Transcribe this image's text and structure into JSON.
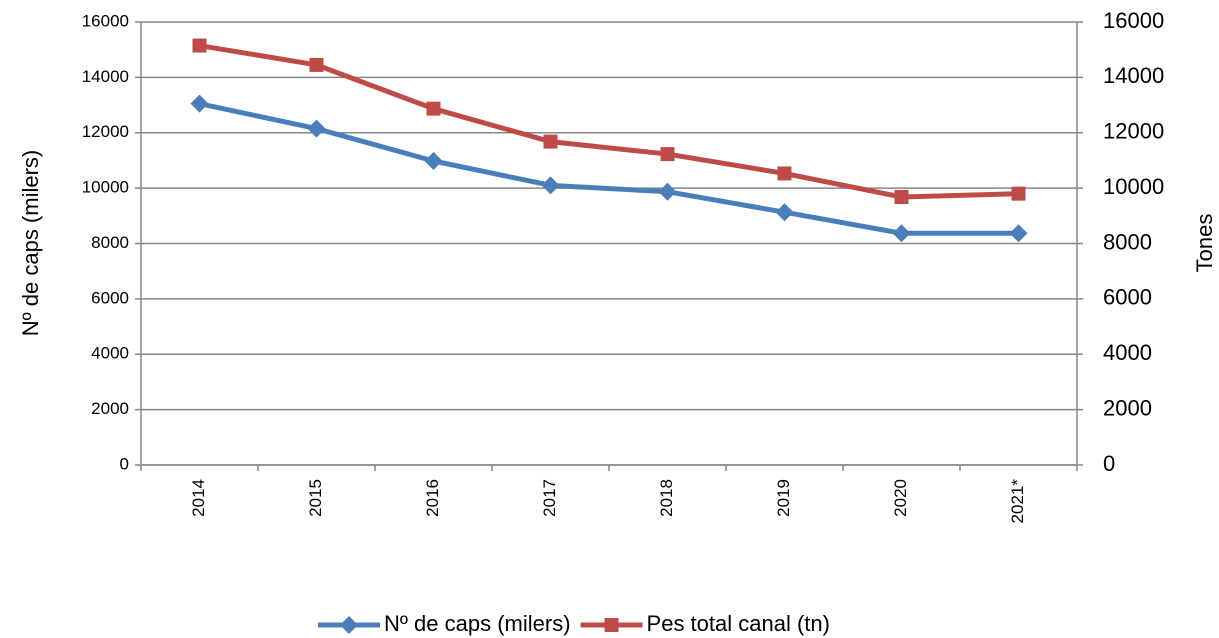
{
  "chart_data": {
    "type": "line",
    "categories": [
      "2014",
      "2015",
      "2016",
      "2017",
      "2018",
      "2019",
      "2020",
      "2021*"
    ],
    "series": [
      {
        "name": "Nº de caps (milers)",
        "color": "#4a7ebb",
        "marker": "diamond",
        "values": [
          13050,
          12150,
          10980,
          10100,
          9870,
          9130,
          8370,
          8370
        ]
      },
      {
        "name": "Pes total canal (tn)",
        "color": "#be4b48",
        "marker": "square",
        "axis": "y2",
        "values": [
          15150,
          14450,
          12870,
          11680,
          11230,
          10530,
          9680,
          9800
        ]
      }
    ],
    "y_label": "Nº de caps (milers)",
    "y2_label": "Tones",
    "ylim": [
      0,
      16000
    ],
    "yticks": [
      0,
      2000,
      4000,
      6000,
      8000,
      10000,
      12000,
      14000,
      16000
    ],
    "y2lim": [
      0,
      16000
    ],
    "y2ticks": [
      0,
      2000,
      4000,
      6000,
      8000,
      10000,
      12000,
      14000,
      16000
    ],
    "grid": true,
    "legend": "bottom"
  }
}
